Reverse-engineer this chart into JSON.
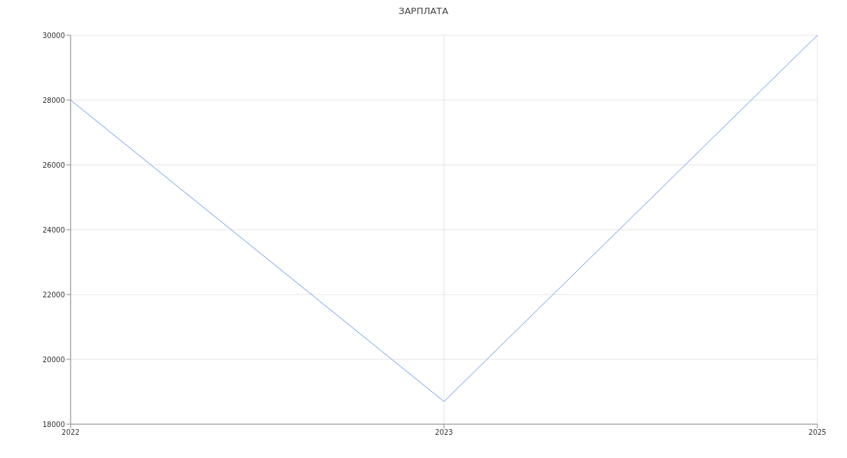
{
  "chart_data": {
    "type": "line",
    "title": "ЗАРПЛАТА",
    "categories": [
      "2022",
      "2023",
      "2025"
    ],
    "series": [
      {
        "color": "#6b98ec",
        "values": [
          28000,
          18700,
          30000
        ]
      }
    ],
    "ylim": [
      18000,
      30000
    ],
    "yticks": [
      18000,
      20000,
      22000,
      24000,
      26000,
      28000,
      30000
    ],
    "grid": true,
    "marker": "none",
    "line_style": "solid"
  }
}
